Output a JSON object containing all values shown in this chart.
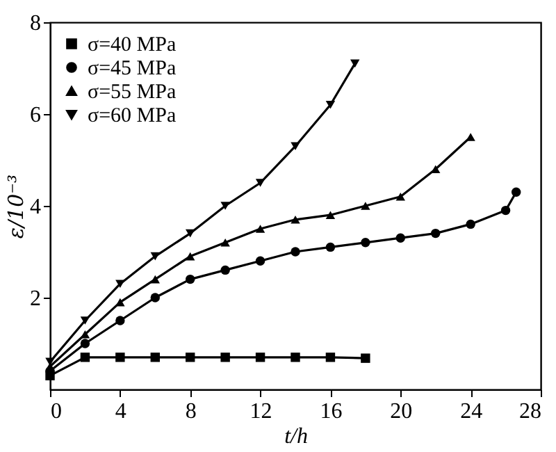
{
  "chart_data": {
    "type": "line",
    "xlabel": "t/h",
    "ylabel": "ε/10⁻³",
    "xlim": [
      0,
      28
    ],
    "xticks": [
      0,
      4,
      8,
      12,
      16,
      20,
      24,
      28
    ],
    "ylim": [
      0,
      8
    ],
    "yticks": [
      2,
      4,
      6,
      8
    ],
    "grid": false,
    "legend": "top left",
    "line_style": "solid",
    "series": [
      {
        "name": "σ=40 MPa",
        "color": "#000000",
        "marker": "square",
        "x": [
          0,
          2,
          4,
          6,
          8,
          10,
          12,
          14,
          16,
          18
        ],
        "values": [
          0.3,
          0.7,
          0.7,
          0.7,
          0.7,
          0.7,
          0.7,
          0.7,
          0.7,
          0.68
        ]
      },
      {
        "name": "σ=45 MPa",
        "color": "#000000",
        "marker": "circle",
        "x": [
          0,
          2,
          4,
          6,
          8,
          10,
          12,
          14,
          16,
          18,
          20,
          22,
          24,
          26,
          26.6
        ],
        "values": [
          0.4,
          1.0,
          1.5,
          2.0,
          2.4,
          2.6,
          2.8,
          3.0,
          3.1,
          3.2,
          3.3,
          3.4,
          3.6,
          3.9,
          4.3
        ]
      },
      {
        "name": "σ=55 MPa",
        "color": "#000000",
        "marker": "triangle",
        "x": [
          0,
          2,
          4,
          6,
          8,
          10,
          12,
          14,
          16,
          18,
          20,
          22,
          24
        ],
        "values": [
          0.5,
          1.2,
          1.9,
          2.4,
          2.9,
          3.2,
          3.5,
          3.7,
          3.8,
          4.0,
          4.2,
          4.8,
          5.5
        ]
      },
      {
        "name": "σ=60 MPa",
        "color": "#000000",
        "marker": "triangle-down",
        "x": [
          0,
          2,
          4,
          6,
          8,
          10,
          12,
          14,
          16,
          17.4
        ],
        "values": [
          0.6,
          1.5,
          2.3,
          2.9,
          3.4,
          4.0,
          4.5,
          5.3,
          6.2,
          7.1
        ]
      }
    ]
  }
}
